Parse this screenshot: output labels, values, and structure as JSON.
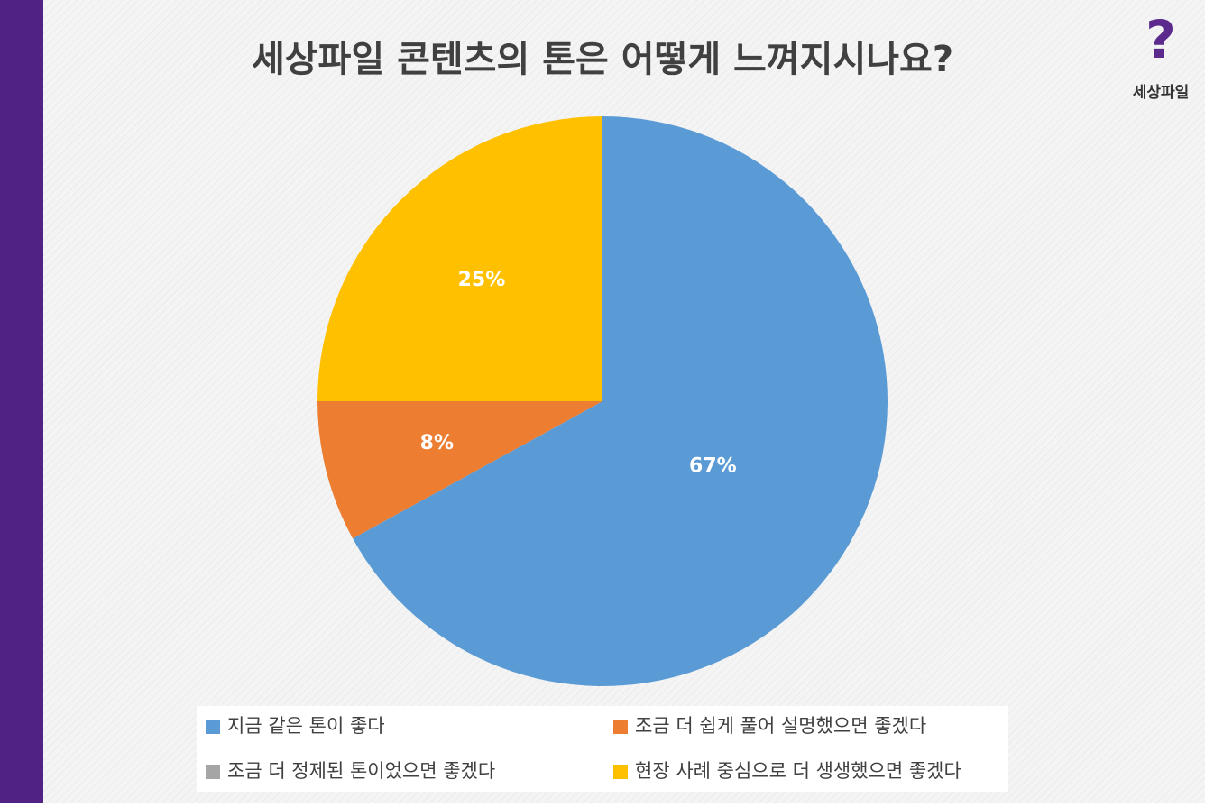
{
  "chart_data": {
    "type": "pie",
    "title": "세상파일 콘텐츠의 톤은 어떻게 느껴지시나요?",
    "categories": [
      "지금 같은 톤이 좋다",
      "조금 더 쉽게 풀어 설명했으면 좋겠다",
      "조금 더 정제된 톤이었으면 좋겠다",
      "현장 사례 중심으로 더 생생했으면 좋겠다"
    ],
    "values": [
      67,
      8,
      0,
      25
    ],
    "value_labels": [
      "67%",
      "8%",
      null,
      "25%"
    ],
    "colors": [
      "#5b9bd5",
      "#ed7d31",
      "#a5a5a5",
      "#ffc000"
    ],
    "legend": "bottom"
  },
  "logo": {
    "mark": "?",
    "text": "세상파일"
  }
}
